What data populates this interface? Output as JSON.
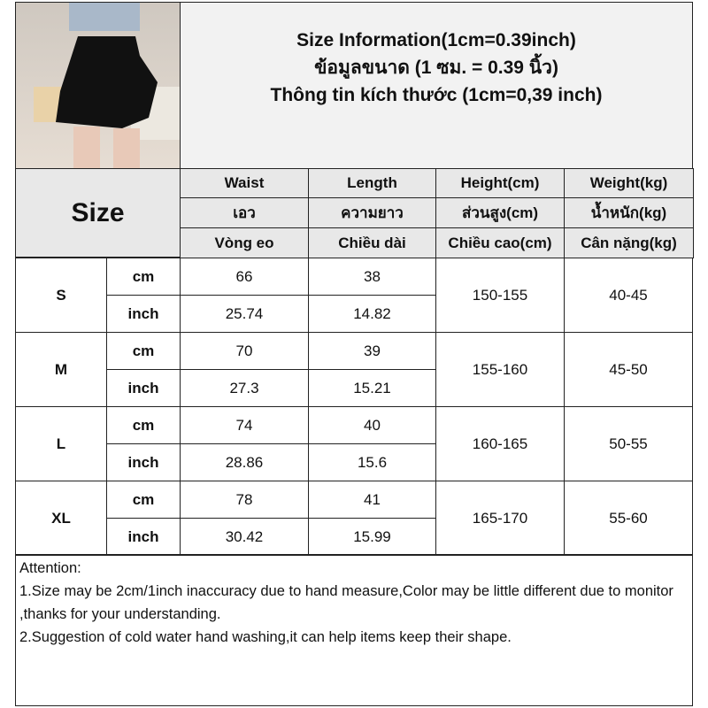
{
  "title": {
    "en": "Size Information(1cm=0.39inch)",
    "th": "ข้อมูลขนาด (1 ซม. = 0.39 นิ้ว)",
    "vi": "Thông tin kích thước (1cm=0,39 inch)"
  },
  "size_label": "Size",
  "headers": [
    [
      "Waist",
      "Length",
      "Height(cm)",
      "Weight(kg)"
    ],
    [
      "เอว",
      "ความยาว",
      "ส่วนสูง(cm)",
      "น้ำหนัก(kg)"
    ],
    [
      "Vòng eo",
      "Chiều dài",
      "Chiều cao(cm)",
      "Cân nặng(kg)"
    ]
  ],
  "rows": [
    {
      "size": "S",
      "cm_label": "cm",
      "inch_label": "inch",
      "waist_cm": "66",
      "length_cm": "38",
      "waist_in": "25.74",
      "length_in": "14.82",
      "height": "150-155",
      "weight": "40-45"
    },
    {
      "size": "M",
      "cm_label": "cm",
      "inch_label": "inch",
      "waist_cm": "70",
      "length_cm": "39",
      "waist_in": "27.3",
      "length_in": "15.21",
      "height": "155-160",
      "weight": "45-50"
    },
    {
      "size": "L",
      "cm_label": "cm",
      "inch_label": "inch",
      "waist_cm": "74",
      "length_cm": "40",
      "waist_in": "28.86",
      "length_in": "15.6",
      "height": "160-165",
      "weight": "50-55"
    },
    {
      "size": "XL",
      "cm_label": "cm",
      "inch_label": "inch",
      "waist_cm": "78",
      "length_cm": "41",
      "waist_in": "30.42",
      "length_in": "15.99",
      "height": "165-170",
      "weight": "55-60"
    }
  ],
  "attention": {
    "title": "Attention:",
    "lines": [
      "1.Size may be 2cm/1inch inaccuracy due to hand measure,Color may be little different due to monitor ,thanks for your understanding.",
      "2.Suggestion of cold water hand washing,it can help items keep their shape."
    ]
  }
}
